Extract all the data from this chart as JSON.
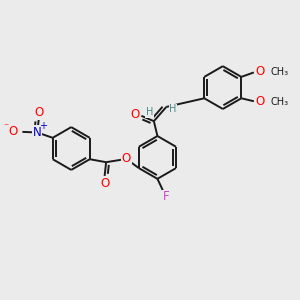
{
  "background_color": "#ebebeb",
  "bond_color": "#1a1a1a",
  "bond_width": 1.4,
  "atom_colors": {
    "O": "#ff0000",
    "N": "#0000cc",
    "F": "#cc44cc",
    "C": "#1a1a1a",
    "H": "#4a8a8a"
  },
  "font_size_atom": 8.5,
  "font_size_small": 7.0
}
